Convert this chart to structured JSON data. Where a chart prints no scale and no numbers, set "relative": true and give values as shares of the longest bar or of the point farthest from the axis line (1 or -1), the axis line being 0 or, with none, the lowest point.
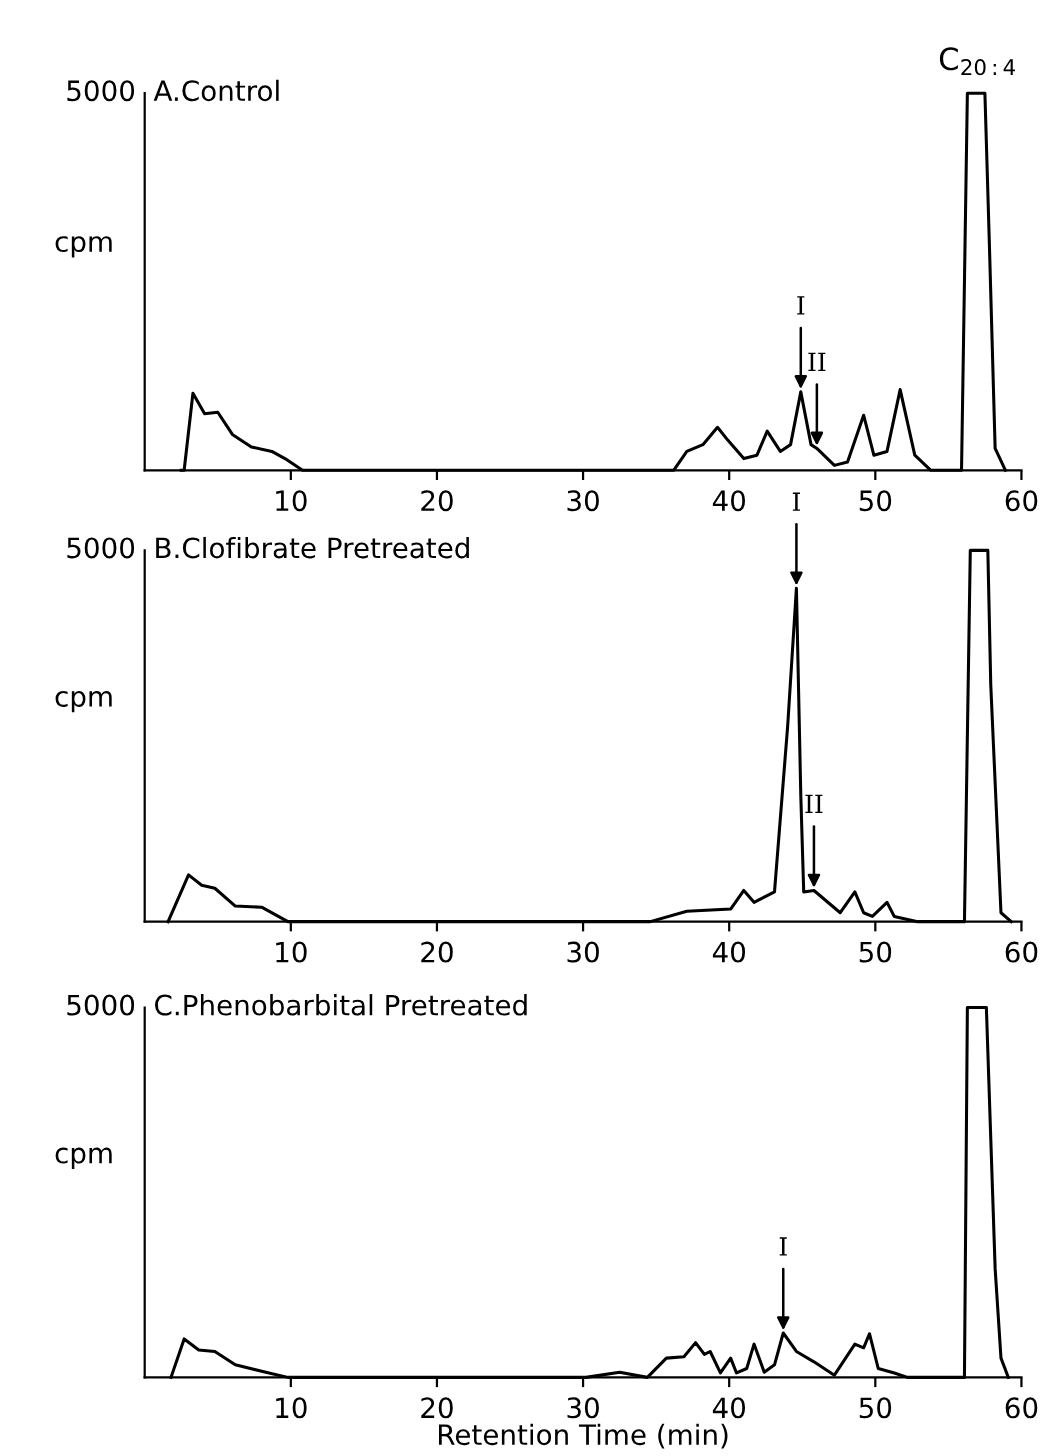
{
  "chart_data": [
    {
      "type": "line",
      "title": "A.Control",
      "ylabel": "cpm",
      "relative": true,
      "xlim": [
        0,
        60
      ],
      "xticks": [
        10,
        20,
        30,
        40,
        50,
        60
      ],
      "grid": false,
      "legend": false,
      "series": [
        {
          "color": "#000000",
          "x": [
            2.5,
            2.7,
            3.3,
            4.1,
            5.0,
            6.0,
            7.3,
            8.7,
            9.6,
            10.8,
            36.2,
            37.1,
            38.2,
            39.2,
            39.9,
            41.0,
            41.9,
            42.6,
            43.5,
            44.2,
            44.9,
            45.6,
            46.0,
            47.2,
            48.1,
            49.2,
            49.9,
            50.8,
            51.7,
            52.7,
            53.8,
            55.9,
            56.3,
            57.5,
            57.8,
            58.2,
            58.9
          ],
          "values": [
            0,
            0,
            0.204,
            0.15,
            0.154,
            0.095,
            0.062,
            0.05,
            0.031,
            0,
            0,
            0.05,
            0.068,
            0.114,
            0.08,
            0.031,
            0.04,
            0.104,
            0.05,
            0.068,
            0.208,
            0.068,
            0.058,
            0.013,
            0.022,
            0.146,
            0.04,
            0.05,
            0.214,
            0.04,
            0,
            0,
            1,
            1,
            0.608,
            0.058,
            0
          ]
        }
      ],
      "annotations": [
        "5000",
        {
          "text": "I",
          "x": 44.9,
          "y": 0.208
        },
        {
          "text": "II",
          "x": 46.0,
          "y": 0.058
        },
        {
          "text": "C$_{20:4}$",
          "x": 57,
          "y": 1
        }
      ]
    },
    {
      "type": "line",
      "title": "B.Clofibrate Pretreated",
      "ylabel": "cpm",
      "relative": true,
      "xlim": [
        0,
        60
      ],
      "xticks": [
        10,
        20,
        30,
        40,
        50,
        60
      ],
      "grid": false,
      "legend": false,
      "series": [
        {
          "color": "#000000",
          "x": [
            1.6,
            3.0,
            3.9,
            4.8,
            6.2,
            8.0,
            9.8,
            34.6,
            37.1,
            40.1,
            41.0,
            41.7,
            43.1,
            44.0,
            44.6,
            44.9,
            45.1,
            45.8,
            47.6,
            48.6,
            49.2,
            49.8,
            50.8,
            51.3,
            52.9,
            56.1,
            56.5,
            57.7,
            57.9,
            58.6,
            59.3
          ],
          "values": [
            0,
            0.126,
            0.098,
            0.09,
            0.042,
            0.039,
            0,
            0,
            0.028,
            0.034,
            0.084,
            0.052,
            0.08,
            0.526,
            0.898,
            0.34,
            0.08,
            0.084,
            0.024,
            0.08,
            0.024,
            0.014,
            0.052,
            0.014,
            0,
            0,
            1,
            1,
            0.638,
            0.024,
            0
          ]
        }
      ],
      "annotations": [
        "5000",
        {
          "text": "I",
          "x": 44.6,
          "y": 0.898
        },
        {
          "text": "II",
          "x": 45.8,
          "y": 0.084
        }
      ]
    },
    {
      "type": "line",
      "title": "C.Phenobarbital Pretreated",
      "ylabel": "cpm",
      "xlabel": "Retention Time (min)",
      "relative": true,
      "xlim": [
        0,
        60
      ],
      "xticks": [
        10,
        20,
        30,
        40,
        50,
        60
      ],
      "grid": false,
      "legend": false,
      "series": [
        {
          "color": "#000000",
          "x": [
            1.8,
            2.7,
            3.7,
            4.8,
            6.2,
            8.5,
            9.8,
            30.2,
            32.5,
            34.4,
            35.7,
            36.9,
            37.7,
            38.3,
            38.7,
            39.4,
            40.1,
            40.5,
            41.2,
            41.7,
            42.4,
            43.1,
            43.7,
            44.6,
            45.8,
            47.2,
            48.6,
            49.2,
            49.6,
            50.2,
            51.3,
            52.2,
            56.1,
            56.3,
            57.6,
            58.2,
            58.6,
            59.1
          ],
          "values": [
            0,
            0.104,
            0.074,
            0.07,
            0.034,
            0.012,
            0,
            0,
            0.014,
            0,
            0.052,
            0.056,
            0.094,
            0.062,
            0.07,
            0.012,
            0.052,
            0.012,
            0.024,
            0.09,
            0.014,
            0.034,
            0.12,
            0.07,
            0.042,
            0.006,
            0.09,
            0.08,
            0.118,
            0.024,
            0.012,
            0,
            0,
            1,
            1,
            0.294,
            0.052,
            0
          ]
        }
      ],
      "annotations": [
        "5000",
        {
          "text": "I",
          "x": 43.7,
          "y": 0.12
        }
      ]
    }
  ]
}
